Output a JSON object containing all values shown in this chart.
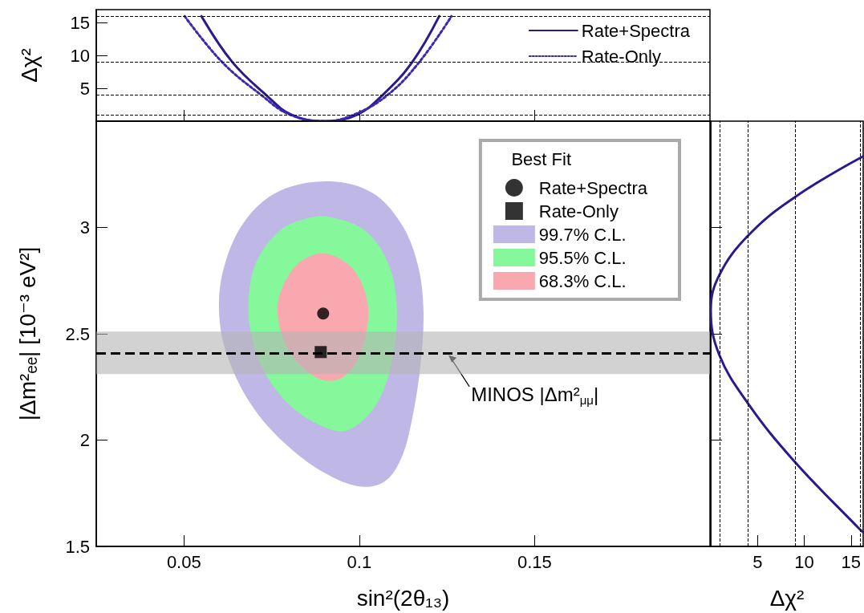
{
  "chart_data": [
    {
      "type": "line",
      "ylabel": "Δχ²",
      "xlim": [
        0.025,
        0.2
      ],
      "xticks": [
        0.05,
        0.1,
        0.15
      ],
      "ylim": [
        0,
        17
      ],
      "yticks": [
        5,
        10,
        15
      ],
      "tick_labels": "y",
      "legend": "top right",
      "marker": "none",
      "ref_lines": [
        {
          "axis": "y",
          "value": 1,
          "line_style": "dashed"
        },
        {
          "axis": "y",
          "value": 4,
          "line_style": "dashed"
        },
        {
          "axis": "y",
          "value": 9,
          "line_style": "dashed"
        },
        {
          "axis": "y",
          "value": 16,
          "line_style": "dashed"
        }
      ],
      "series": [
        {
          "name": "Rate+Spectra",
          "color": "#2a1a8e",
          "line_style": "solid",
          "x": [
            0.055,
            0.0638,
            0.0734,
            0.0806,
            0.0901,
            0.0994,
            0.1067,
            0.1151,
            0.1228
          ],
          "values": [
            16,
            9,
            4,
            1,
            0,
            1,
            4,
            9,
            16
          ]
        },
        {
          "name": "Rate-Only",
          "color": "#3b28b0",
          "line_style": "dotted",
          "x": [
            0.0502,
            0.0609,
            0.072,
            0.0802,
            0.0902,
            0.0985,
            0.1081,
            0.1171,
            0.1263
          ],
          "values": [
            16,
            9,
            4,
            1,
            0,
            1,
            4,
            9,
            16
          ]
        }
      ]
    },
    {
      "type": "area",
      "xlabel": "sin²(2θ₁₃)",
      "ylabel": "|Δm²ₑₑ| [10⁻³ eV²]",
      "xlim": [
        0.025,
        0.2
      ],
      "xticks": [
        0.05,
        0.1,
        0.15
      ],
      "ylim": [
        1.5,
        3.5
      ],
      "yticks": [
        1.5,
        2,
        2.5,
        3
      ],
      "legend": "top right",
      "legend_title": "Best Fit",
      "bands": [
        {
          "axis": "y",
          "from": 2.31,
          "to": 2.51,
          "color": "#b4b4b4"
        }
      ],
      "ref_lines": [
        {
          "axis": "y",
          "value": 2.41,
          "line_style": "dashed",
          "color": "#000000"
        }
      ],
      "annotations": [
        {
          "text": "MINOS |Δm²$_{μμ}$|",
          "x": 0.125,
          "y": 2.41
        }
      ],
      "series": [
        {
          "name": "Rate+Spectra",
          "type": "scatter",
          "marker": "circle",
          "color": "#000000",
          "x": [
            0.0897
          ],
          "values": [
            2.595
          ]
        },
        {
          "name": "Rate-Only",
          "type": "scatter",
          "marker": "square",
          "color": "#000000",
          "x": [
            0.089
          ],
          "values": [
            2.414
          ]
        },
        {
          "name": "99.7% C.L.",
          "color": "#bfb8e6",
          "x": [
            0.0918,
            0.1039,
            0.1122,
            0.1167,
            0.1183,
            0.1175,
            0.1152,
            0.1122,
            0.1077,
            0.1016,
            0.0926,
            0.0812,
            0.0699,
            0.0623,
            0.06,
            0.0616,
            0.0676,
            0.0774
          ],
          "values": [
            3.217,
            3.161,
            3.011,
            2.824,
            2.611,
            2.361,
            2.111,
            1.924,
            1.811,
            1.78,
            1.824,
            1.949,
            2.149,
            2.399,
            2.611,
            2.824,
            3.036,
            3.173
          ]
        },
        {
          "name": "95.5% C.L.",
          "color": "#85f89c",
          "x": [
            0.091,
            0.1016,
            0.1084,
            0.1107,
            0.1092,
            0.1046,
            0.0971,
            0.091,
            0.0812,
            0.0737,
            0.0695,
            0.0684,
            0.0706,
            0.0774,
            0.085
          ],
          "values": [
            3.051,
            2.986,
            2.824,
            2.611,
            2.361,
            2.161,
            2.049,
            2.055,
            2.149,
            2.299,
            2.474,
            2.649,
            2.836,
            2.986,
            3.042
          ]
        },
        {
          "name": "68.3% C.L.",
          "color": "#f8a8ae",
          "x": [
            0.0903,
            0.0978,
            0.102,
            0.1024,
            0.1001,
            0.0956,
            0.0903,
            0.0842,
            0.079,
            0.0767,
            0.0782,
            0.0835
          ],
          "values": [
            2.877,
            2.811,
            2.674,
            2.549,
            2.399,
            2.299,
            2.28,
            2.336,
            2.449,
            2.599,
            2.724,
            2.842
          ]
        }
      ]
    },
    {
      "type": "line",
      "xlabel": "Δχ²",
      "xlim": [
        0,
        16.3
      ],
      "xticks": [
        5,
        10,
        15
      ],
      "ylim": [
        1.5,
        3.5
      ],
      "yticks": [
        1.5,
        2,
        2.5,
        3
      ],
      "tick_labels": "x",
      "marker": "none",
      "ref_lines": [
        {
          "axis": "x",
          "value": 1,
          "line_style": "dashed"
        },
        {
          "axis": "x",
          "value": 4,
          "line_style": "dashed"
        },
        {
          "axis": "x",
          "value": 9,
          "line_style": "dashed"
        },
        {
          "axis": "x",
          "value": 16,
          "line_style": "dashed"
        }
      ],
      "series": [
        {
          "color": "#2a1a8e",
          "x": [
            16.3,
            8.9,
            4,
            0.9,
            0,
            0.9,
            4,
            8.9,
            15.9,
            16.3
          ],
          "values": [
            3.335,
            3.14,
            2.962,
            2.775,
            2.611,
            2.402,
            2.171,
            1.902,
            1.582,
            1.567
          ]
        }
      ]
    }
  ]
}
